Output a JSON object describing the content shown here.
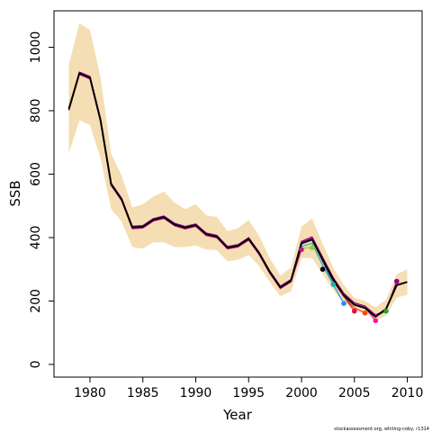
{
  "chart_data": {
    "type": "line",
    "xlabel": "Year",
    "ylabel": "SSB",
    "xlim": [
      1976.6,
      2011.4
    ],
    "ylim": [
      -40,
      1115
    ],
    "xticks": [
      1980,
      1985,
      1990,
      1995,
      2000,
      2005,
      2010
    ],
    "xtick_labels": [
      "1980",
      "1985",
      "1990",
      "1995",
      "2000",
      "2005",
      "2010"
    ],
    "yticks": [
      0,
      200,
      400,
      600,
      800,
      1000
    ],
    "ytick_labels": [
      "0",
      "200",
      "400",
      "600",
      "800",
      "1000"
    ],
    "grid": false,
    "source_note": "stockassessment.org, whiting-coby, r1314",
    "band_color": "#f5deb3",
    "band": {
      "x": [
        1978,
        1979,
        1980,
        1981,
        1982,
        1983,
        1984,
        1985,
        1986,
        1987,
        1988,
        1989,
        1990,
        1991,
        1992,
        1993,
        1994,
        1995,
        1996,
        1997,
        1998,
        1999,
        2000,
        2001,
        2002,
        2003,
        2004,
        2005,
        2006,
        2007,
        2008,
        2009,
        2010
      ],
      "lower": [
        665,
        770,
        755,
        650,
        490,
        450,
        370,
        365,
        385,
        385,
        370,
        370,
        375,
        362,
        360,
        325,
        330,
        345,
        310,
        260,
        215,
        230,
        335,
        335,
        285,
        235,
        195,
        175,
        165,
        135,
        155,
        210,
        220
      ],
      "upper": [
        945,
        1075,
        1055,
        905,
        665,
        595,
        495,
        505,
        530,
        545,
        510,
        490,
        505,
        470,
        465,
        420,
        430,
        455,
        405,
        335,
        280,
        305,
        435,
        460,
        380,
        305,
        250,
        210,
        200,
        180,
        205,
        285,
        300
      ]
    },
    "series": [
      {
        "color": "#2ca02c",
        "x": [
          1978,
          1979,
          1980,
          1981,
          1982,
          1983,
          1984,
          1985,
          1986,
          1987,
          1988,
          1989,
          1990,
          1991,
          1992,
          1993,
          1994,
          1995,
          1996,
          1997,
          1998,
          1999,
          2000,
          2001,
          2002,
          2003,
          2004,
          2005,
          2006,
          2007,
          2008
        ],
        "values": [
          806,
          920,
          906,
          772,
          570,
          522,
          434,
          436,
          458,
          466,
          443,
          433,
          441,
          412,
          405,
          370,
          376,
          398,
          352,
          293,
          245,
          266,
          384,
          398,
          334,
          270,
          220,
          190,
          180,
          152,
          168
        ]
      },
      {
        "color": "#1e90ff",
        "x": [
          1978,
          1979,
          1980,
          1981,
          1982,
          1983,
          1984,
          1985,
          1986,
          1987,
          1988,
          1989,
          1990,
          1991,
          1992,
          1993,
          1994,
          1995,
          1996,
          1997,
          1998,
          1999,
          2000,
          2001,
          2002,
          2003,
          2004
        ],
        "values": [
          803,
          917,
          903,
          769,
          567,
          519,
          431,
          433,
          455,
          463,
          440,
          430,
          438,
          409,
          402,
          367,
          373,
          395,
          349,
          290,
          242,
          263,
          380,
          392,
          325,
          252,
          192
        ]
      },
      {
        "color": "#ff1493",
        "x": [
          1978,
          1979,
          1980,
          1981,
          1982,
          1983,
          1984,
          1985,
          1986,
          1987,
          1988,
          1989,
          1990,
          1991,
          1992,
          1993,
          1994,
          1995,
          1996,
          1997,
          1998,
          1999,
          2000,
          2001,
          2002,
          2003,
          2004,
          2005,
          2006,
          2007
        ],
        "values": [
          806,
          921,
          907,
          773,
          571,
          523,
          435,
          437,
          459,
          467,
          444,
          434,
          442,
          413,
          406,
          371,
          377,
          399,
          353,
          294,
          246,
          267,
          386,
          400,
          336,
          272,
          222,
          190,
          180,
          138
        ]
      },
      {
        "color": "#ff4500",
        "x": [
          1978,
          1979,
          1980,
          1981,
          1982,
          1983,
          1984,
          1985,
          1986,
          1987,
          1988,
          1989,
          1990,
          1991,
          1992,
          1993,
          1994,
          1995,
          1996,
          1997,
          1998,
          1999,
          2000,
          2001,
          2002,
          2003,
          2004,
          2005,
          2006
        ],
        "values": [
          804,
          919,
          905,
          771,
          569,
          521,
          433,
          435,
          457,
          465,
          442,
          432,
          440,
          411,
          404,
          369,
          375,
          397,
          351,
          292,
          244,
          265,
          382,
          396,
          330,
          264,
          214,
          178,
          162
        ]
      },
      {
        "color": "#dc143c",
        "x": [
          1978,
          1979,
          1980,
          1981,
          1982,
          1983,
          1984,
          1985,
          1986,
          1987,
          1988,
          1989,
          1990,
          1991,
          1992,
          1993,
          1994,
          1995,
          1996,
          1997,
          1998,
          1999,
          2000,
          2001,
          2002,
          2003,
          2004,
          2005
        ],
        "values": [
          805,
          920,
          906,
          772,
          570,
          522,
          434,
          436,
          458,
          466,
          443,
          433,
          441,
          412,
          405,
          370,
          376,
          398,
          352,
          293,
          245,
          266,
          384,
          396,
          326,
          262,
          214,
          168
        ]
      },
      {
        "color": "#20b2aa",
        "x": [
          1978,
          1979,
          1980,
          1981,
          1982,
          1983,
          1984,
          1985,
          1986,
          1987,
          1988,
          1989,
          1990,
          1991,
          1992,
          1993,
          1994,
          1995,
          1996,
          1997,
          1998,
          1999,
          2000,
          2001,
          2002,
          2003
        ],
        "values": [
          802,
          916,
          902,
          768,
          566,
          518,
          430,
          432,
          454,
          462,
          439,
          429,
          437,
          408,
          401,
          366,
          372,
          394,
          348,
          289,
          241,
          262,
          372,
          382,
          312,
          252
        ]
      },
      {
        "color": "#9acd32",
        "x": [
          1978,
          1979,
          1980,
          1981,
          1982,
          1983,
          1984,
          1985,
          1986,
          1987,
          1988,
          1989,
          1990,
          1991,
          1992,
          1993,
          1994,
          1995,
          1996,
          1997,
          1998,
          1999,
          2000,
          2001
        ],
        "values": [
          801,
          915,
          901,
          767,
          565,
          517,
          429,
          431,
          453,
          461,
          438,
          428,
          436,
          407,
          400,
          365,
          371,
          393,
          347,
          288,
          240,
          261,
          366,
          368
        ]
      },
      {
        "color": "#c71585",
        "x": [
          1978,
          1979,
          1980,
          1981,
          1982,
          1983,
          1984,
          1985,
          1986,
          1987,
          1988,
          1989,
          1990,
          1991,
          1992,
          1993,
          1994,
          1995,
          1996,
          1997,
          1998,
          1999,
          2000
        ],
        "values": [
          800,
          914,
          900,
          766,
          564,
          516,
          428,
          430,
          452,
          460,
          437,
          427,
          435,
          406,
          399,
          364,
          370,
          392,
          346,
          287,
          239,
          260,
          362
        ]
      },
      {
        "color": "#8b008b",
        "x": [
          1978,
          1979,
          1980,
          1981,
          1982,
          1983,
          1984,
          1985,
          1986,
          1987,
          1988,
          1989,
          1990,
          1991,
          1992,
          1993,
          1994,
          1995,
          1996,
          1997,
          1998,
          1999,
          2000,
          2001,
          2002,
          2003,
          2004,
          2005,
          2006,
          2007,
          2008,
          2009
        ],
        "values": [
          807,
          922,
          908,
          774,
          572,
          524,
          436,
          438,
          460,
          468,
          445,
          435,
          443,
          414,
          407,
          372,
          378,
          400,
          354,
          295,
          247,
          268,
          388,
          402,
          338,
          274,
          224,
          194,
          184,
          156,
          172,
          262
        ]
      },
      {
        "color": "#000000",
        "x": [
          1978,
          1979,
          1980,
          1981,
          1982,
          1983,
          1984,
          1985,
          1986,
          1987,
          1988,
          1989,
          1990,
          1991,
          1992,
          1993,
          1994,
          1995,
          1996,
          1997,
          1998,
          1999,
          2000,
          2001,
          2002,
          2003,
          2004,
          2005,
          2006,
          2007,
          2008,
          2009,
          2010
        ],
        "values": [
          805,
          918,
          904,
          770,
          568,
          520,
          432,
          434,
          456,
          464,
          441,
          431,
          439,
          410,
          403,
          368,
          374,
          396,
          350,
          291,
          243,
          264,
          382,
          394,
          330,
          268,
          218,
          188,
          178,
          150,
          175,
          250,
          260
        ]
      }
    ],
    "endpoints": [
      {
        "color": "#c71585",
        "x": 2000,
        "y": 362
      },
      {
        "color": "#9acd32",
        "x": 2001,
        "y": 368
      },
      {
        "color": "#000000",
        "x": 2002,
        "y": 300
      },
      {
        "color": "#20b2aa",
        "x": 2003,
        "y": 252
      },
      {
        "color": "#1e90ff",
        "x": 2004,
        "y": 192
      },
      {
        "color": "#dc143c",
        "x": 2005,
        "y": 168
      },
      {
        "color": "#ff4500",
        "x": 2006,
        "y": 162
      },
      {
        "color": "#ff1493",
        "x": 2007,
        "y": 138
      },
      {
        "color": "#2ca02c",
        "x": 2008,
        "y": 168
      },
      {
        "color": "#8b008b",
        "x": 2009,
        "y": 262
      }
    ]
  }
}
